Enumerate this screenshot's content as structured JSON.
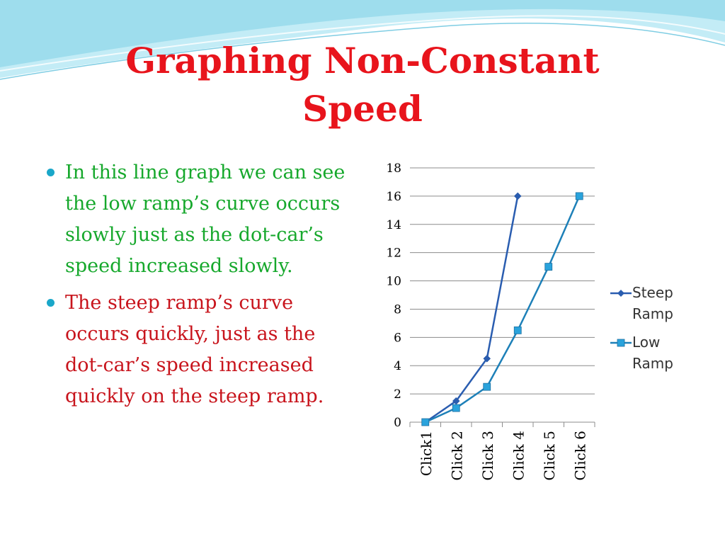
{
  "slide": {
    "title_line1": "Graphing Non-Constant",
    "title_line2": "Speed",
    "bullets": [
      {
        "text": "In this line graph we can see the low ramp’s curve occurs slowly just as the dot-car’s speed increased slowly.",
        "color": "#16a82c"
      },
      {
        "text": "The steep ramp’s curve occurs quickly, just as the dot-car’s speed increased quickly on the steep ramp.",
        "color": "#c8141c"
      }
    ],
    "colors": {
      "title": "#e8141c",
      "bullet_dot": "#1aa7c9",
      "wave": "#8fd7ea"
    }
  },
  "chart_data": {
    "type": "line",
    "categories": [
      "Click1",
      "Click 2",
      "Click 3",
      "Click 4",
      "Click 5",
      "Click 6"
    ],
    "ylim": [
      0,
      18
    ],
    "yticks": [
      0,
      2,
      4,
      6,
      8,
      10,
      12,
      14,
      16,
      18
    ],
    "grid": true,
    "legend_position": "right",
    "series": [
      {
        "name": "Steep Ramp",
        "name_lines": [
          "Steep",
          "Ramp"
        ],
        "values": [
          0,
          1.5,
          4.5,
          16,
          null,
          null
        ],
        "color": "#2a5db0",
        "marker": "diamond"
      },
      {
        "name": "Low Ramp",
        "name_lines": [
          "Low",
          "Ramp"
        ],
        "values": [
          0,
          1,
          2.5,
          6.5,
          11,
          16
        ],
        "color": "#1d80b8",
        "marker": "square"
      }
    ]
  }
}
